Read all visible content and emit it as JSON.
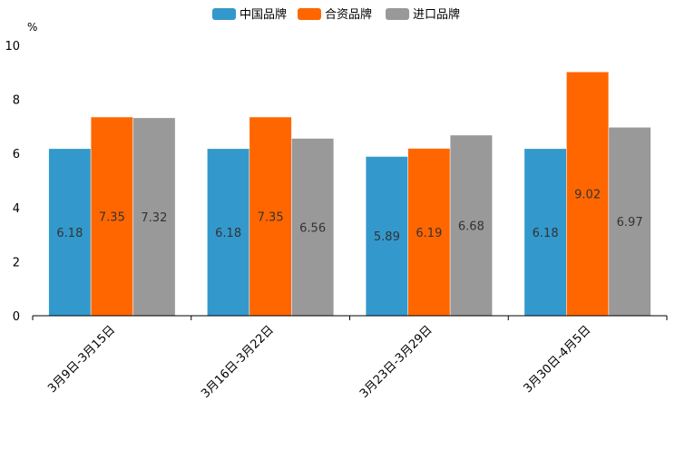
{
  "chart_data": {
    "type": "bar",
    "unit": "%",
    "categories": [
      "3月9日-3月15日",
      "3月16日-3月22日",
      "3月23日-3月29日",
      "3月30日-4月5日"
    ],
    "series": [
      {
        "name": "中国品牌",
        "color": "#3399cc",
        "values": [
          6.18,
          6.18,
          5.89,
          6.18
        ]
      },
      {
        "name": "合资品牌",
        "color": "#ff6600",
        "values": [
          7.35,
          7.35,
          6.19,
          9.02
        ]
      },
      {
        "name": "进口品牌",
        "color": "#999999",
        "values": [
          7.32,
          6.56,
          6.68,
          6.97
        ]
      }
    ],
    "ylim": [
      0,
      10
    ],
    "yticks": [
      "0",
      "2",
      "4",
      "6",
      "8",
      "10"
    ],
    "legend_position": "top-center"
  }
}
